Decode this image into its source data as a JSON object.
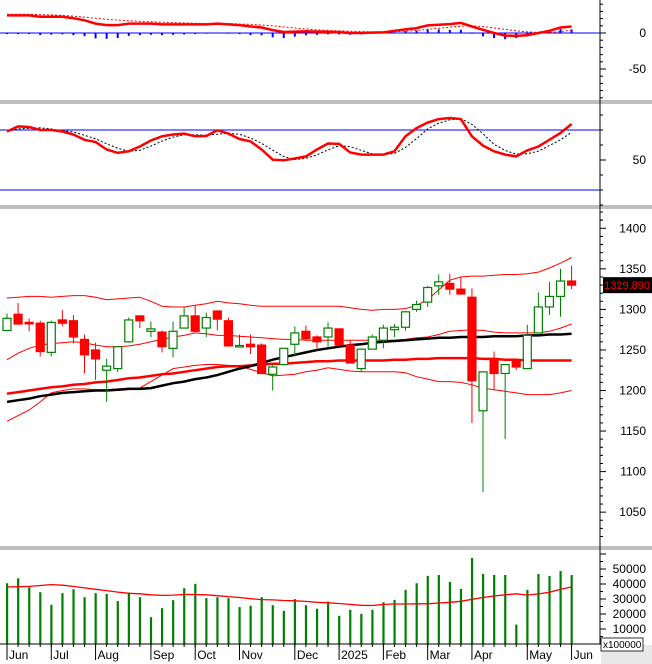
{
  "chart_data": [
    {
      "panel": "macd",
      "type": "line",
      "yticks": [
        {
          "value": 0,
          "label": "0"
        },
        {
          "value": -50,
          "label": "-50"
        }
      ],
      "macd": [
        24.5,
        24.5,
        24.5,
        22.7,
        22.7,
        22.7,
        20.5,
        17.7,
        13,
        11,
        11,
        13,
        13,
        13,
        12,
        12,
        12,
        12,
        12,
        13,
        12,
        11,
        9,
        7.7,
        4,
        1.4,
        2,
        2.3,
        2,
        1.8,
        1,
        0,
        0,
        0.5,
        0.9,
        3,
        5,
        6.8,
        10.5,
        11.5,
        12.3,
        14,
        9,
        4.5,
        0,
        -3.6,
        -4,
        -3,
        0,
        3,
        7.7,
        9
      ],
      "signal": [
        26,
        26,
        26,
        25.5,
        25,
        24.5,
        23.5,
        22,
        20.5,
        19,
        18,
        17,
        16,
        15.5,
        15,
        14.5,
        14,
        13.5,
        13,
        13,
        13,
        12.5,
        12,
        11,
        10,
        8.5,
        7,
        5.5,
        4.5,
        3.5,
        3,
        2.5,
        2,
        1.5,
        1.5,
        2,
        2.5,
        3.5,
        5,
        6.5,
        8,
        9.5,
        10,
        9,
        7,
        5,
        3,
        1.5,
        0.5,
        0.5,
        2,
        4
      ],
      "colors": {
        "macd": "#ff0000",
        "signal": "#ff0000",
        "histogram": "#0000ff",
        "zero_line": "#0000ff"
      }
    },
    {
      "panel": "rsi",
      "type": "line",
      "yticks": [
        {
          "value": 50,
          "label": "50"
        }
      ],
      "levels": [
        70,
        30
      ],
      "rsi": [
        69,
        72.4,
        72,
        70,
        70,
        69,
        67,
        63.5,
        62,
        57,
        54.7,
        55.8,
        59,
        63,
        65.8,
        67,
        67.6,
        65.8,
        66,
        69.8,
        67.6,
        64,
        62.4,
        57,
        50.2,
        49.8,
        51,
        52.4,
        57,
        61,
        60.7,
        55,
        53.6,
        53.6,
        53.6,
        55.8,
        65.8,
        71.3,
        75,
        77.3,
        78,
        77.3,
        65.8,
        59.6,
        55.8,
        53.6,
        52.4,
        56.4,
        59,
        63.5,
        68,
        74
      ],
      "colors": {
        "rsi": "#ff0000",
        "signal": "#000000",
        "levels": "#0000ff"
      }
    },
    {
      "panel": "price",
      "type": "candlestick",
      "ylim": [
        1010,
        1420
      ],
      "yticks": [
        {
          "value": 1400,
          "label": "1400"
        },
        {
          "value": 1350,
          "label": "1350"
        },
        {
          "value": 1300,
          "label": "1300"
        },
        {
          "value": 1250,
          "label": "1250"
        },
        {
          "value": 1200,
          "label": "1200"
        },
        {
          "value": 1150,
          "label": "1150"
        },
        {
          "value": 1100,
          "label": "1100"
        },
        {
          "value": 1050,
          "label": "1050"
        }
      ],
      "last_price": 1329.89,
      "last_price_label": "1329.890",
      "candle_fields": [
        "open",
        "high",
        "low",
        "close"
      ],
      "candles": [
        [
          1274,
          1295,
          1273,
          1289
        ],
        [
          1294,
          1308,
          1281,
          1282
        ],
        [
          1284,
          1289,
          1273,
          1283
        ],
        [
          1283,
          1286,
          1242,
          1248
        ],
        [
          1247,
          1286,
          1242,
          1284
        ],
        [
          1287,
          1299,
          1279,
          1283
        ],
        [
          1286,
          1293,
          1258,
          1266
        ],
        [
          1263,
          1269,
          1221,
          1244
        ],
        [
          1250,
          1259,
          1213,
          1239
        ],
        [
          1225,
          1239,
          1186,
          1230
        ],
        [
          1227,
          1255,
          1223,
          1254
        ],
        [
          1260,
          1290,
          1259,
          1287
        ],
        [
          1292,
          1292,
          1277,
          1286
        ],
        [
          1273,
          1285,
          1266,
          1276
        ],
        [
          1272,
          1274,
          1247,
          1254
        ],
        [
          1252,
          1285,
          1241,
          1273
        ],
        [
          1277,
          1303,
          1277,
          1292
        ],
        [
          1292,
          1305,
          1273,
          1273
        ],
        [
          1277,
          1296,
          1266,
          1290
        ],
        [
          1298,
          1299,
          1274,
          1288
        ],
        [
          1286,
          1290,
          1254,
          1255
        ],
        [
          1255,
          1269,
          1253,
          1255.5
        ],
        [
          1257,
          1269,
          1245,
          1254
        ],
        [
          1256,
          1258,
          1220,
          1221
        ],
        [
          1220,
          1232,
          1200,
          1229
        ],
        [
          1232,
          1252,
          1231,
          1252
        ],
        [
          1257,
          1279,
          1242,
          1271
        ],
        [
          1273,
          1280,
          1262,
          1264
        ],
        [
          1266,
          1268,
          1252,
          1260
        ],
        [
          1266,
          1284,
          1254,
          1277
        ],
        [
          1276,
          1276,
          1254,
          1256
        ],
        [
          1256,
          1262,
          1234,
          1234
        ],
        [
          1227,
          1251,
          1223,
          1251
        ],
        [
          1251,
          1269,
          1251,
          1266
        ],
        [
          1262,
          1281,
          1252,
          1277
        ],
        [
          1275,
          1282,
          1266,
          1278
        ],
        [
          1278,
          1298,
          1274,
          1297
        ],
        [
          1300,
          1311,
          1297,
          1306
        ],
        [
          1309,
          1329,
          1303,
          1327
        ],
        [
          1329,
          1343,
          1318,
          1334
        ],
        [
          1332,
          1344,
          1318,
          1325
        ],
        [
          1325,
          1340,
          1318,
          1319
        ],
        [
          1315,
          1326,
          1160,
          1212
        ],
        [
          1175,
          1223,
          1075,
          1223
        ],
        [
          1237,
          1248,
          1201,
          1221
        ],
        [
          1221,
          1232,
          1140,
          1232
        ],
        [
          1237,
          1239,
          1225,
          1229
        ],
        [
          1227,
          1281,
          1227,
          1268
        ],
        [
          1271,
          1321,
          1271,
          1303
        ],
        [
          1303,
          1334,
          1293,
          1316
        ],
        [
          1316,
          1350,
          1291,
          1335
        ],
        [
          1335,
          1354,
          1325,
          1329.89
        ]
      ],
      "ma_black": [
        1186,
        1188,
        1190,
        1193,
        1195,
        1197,
        1198,
        1199,
        1200,
        1200,
        1201,
        1202,
        1202,
        1203,
        1206,
        1209,
        1211,
        1214,
        1216,
        1219,
        1223,
        1227,
        1230,
        1234,
        1238,
        1241,
        1244,
        1247,
        1250,
        1252,
        1254,
        1256,
        1257,
        1259,
        1260,
        1261,
        1262,
        1263,
        1264,
        1265,
        1265,
        1266,
        1266,
        1266,
        1267,
        1267,
        1267,
        1268,
        1268,
        1269,
        1269,
        1270
      ],
      "ma_red": [
        1196,
        1198,
        1200,
        1202,
        1204,
        1205,
        1207,
        1208,
        1210,
        1211,
        1213,
        1215,
        1216,
        1218,
        1220,
        1221,
        1223,
        1225,
        1227,
        1229,
        1230,
        1230,
        1231,
        1232,
        1233,
        1233,
        1234,
        1235,
        1236,
        1236,
        1237,
        1237,
        1237,
        1237,
        1237,
        1238,
        1238,
        1239,
        1239,
        1240,
        1240,
        1240,
        1240,
        1239,
        1239,
        1238,
        1238,
        1237,
        1237,
        1237,
        1237,
        1237
      ],
      "bb_upper": [
        1314,
        1315,
        1316,
        1316,
        1315,
        1316,
        1317,
        1317,
        1315,
        1312,
        1313,
        1314,
        1315,
        1310,
        1304,
        1303,
        1303,
        1305,
        1307,
        1310,
        1308,
        1307,
        1305,
        1304,
        1304,
        1304,
        1304,
        1304,
        1304,
        1304,
        1304,
        1302,
        1300,
        1299,
        1300,
        1300,
        1301,
        1305,
        1312,
        1324,
        1336,
        1340,
        1341,
        1341,
        1342,
        1343,
        1343,
        1344,
        1346,
        1351,
        1357,
        1364
      ],
      "bb_mid": [
        1238,
        1246,
        1252,
        1256,
        1258,
        1259,
        1260,
        1259,
        1256,
        1254,
        1254,
        1255,
        1257,
        1260,
        1263,
        1266,
        1268,
        1271,
        1270,
        1268,
        1268,
        1267,
        1266,
        1265,
        1264,
        1263,
        1263,
        1262,
        1262,
        1262,
        1262,
        1262,
        1262,
        1262,
        1262,
        1262,
        1263,
        1265,
        1266,
        1269,
        1273,
        1274,
        1275,
        1274,
        1272,
        1271,
        1271,
        1271,
        1271,
        1273,
        1277,
        1282
      ],
      "bb_lower": [
        1162,
        1169,
        1176,
        1186,
        1197,
        1200,
        1202,
        1202,
        1201,
        1201,
        1202,
        1203,
        1203,
        1211,
        1219,
        1227,
        1229,
        1231,
        1232,
        1232,
        1231,
        1230,
        1226,
        1222,
        1218,
        1219,
        1220,
        1223,
        1225,
        1228,
        1226,
        1224,
        1223,
        1223,
        1223,
        1223,
        1222,
        1217,
        1214,
        1211,
        1211,
        1210,
        1207,
        1203,
        1201,
        1199,
        1197,
        1195,
        1195,
        1195,
        1197,
        1200
      ],
      "colors": {
        "up": "#008000",
        "down": "#ff0000",
        "ma_black": "#000000",
        "ma_red": "#ff0000",
        "bands": "#ff0000",
        "last_price_bg": "#000000",
        "last_price_text": "#ff0000"
      }
    },
    {
      "panel": "volume",
      "type": "bar",
      "unit_label": "x100000",
      "yticks": [
        {
          "value": 50000,
          "label": "50000"
        },
        {
          "value": 40000,
          "label": "40000"
        },
        {
          "value": 30000,
          "label": "30000"
        },
        {
          "value": 20000,
          "label": "20000"
        },
        {
          "value": 10000,
          "label": "10000"
        }
      ],
      "values": [
        40500,
        43800,
        37800,
        34500,
        26100,
        33900,
        36500,
        31200,
        33900,
        33400,
        28600,
        34300,
        31200,
        17900,
        23900,
        29200,
        37200,
        40100,
        30600,
        31200,
        30600,
        24600,
        25500,
        31200,
        25900,
        22100,
        29900,
        25900,
        23500,
        28300,
        18800,
        22800,
        20100,
        22800,
        27800,
        29400,
        36100,
        40500,
        45400,
        46000,
        41400,
        36700,
        57300,
        46700,
        46000,
        46000,
        12900,
        36100,
        46700,
        45400,
        48700,
        46000
      ],
      "ma": [
        38000,
        38200,
        38400,
        39000,
        39600,
        39200,
        38400,
        37400,
        36500,
        35600,
        34600,
        33800,
        33500,
        32800,
        32400,
        32600,
        33000,
        33000,
        32800,
        32200,
        31600,
        31000,
        30200,
        29600,
        29400,
        29000,
        28800,
        28400,
        27800,
        27500,
        27000,
        26400,
        25800,
        25700,
        26400,
        26700,
        26700,
        26800,
        26800,
        27300,
        27800,
        28500,
        29800,
        31000,
        32000,
        32800,
        33500,
        32600,
        33400,
        34500,
        36500,
        38000
      ],
      "colors": {
        "bars": "#008000",
        "ma": "#ff0000"
      }
    }
  ],
  "x_axis": {
    "month_ticks": [
      {
        "label": "Jun",
        "week": 0
      },
      {
        "label": "Jul",
        "week": 4
      },
      {
        "label": "Aug",
        "week": 8
      },
      {
        "label": "Sep",
        "week": 13
      },
      {
        "label": "Oct",
        "week": 17
      },
      {
        "label": "Nov",
        "week": 21
      },
      {
        "label": "Dec",
        "week": 26
      },
      {
        "label": "2025",
        "week": 30
      },
      {
        "label": "Feb",
        "week": 34
      },
      {
        "label": "Mar",
        "week": 38
      },
      {
        "label": "Apr",
        "week": 42
      },
      {
        "label": "May",
        "week": 47
      },
      {
        "label": "Jun",
        "week": 51
      }
    ]
  }
}
